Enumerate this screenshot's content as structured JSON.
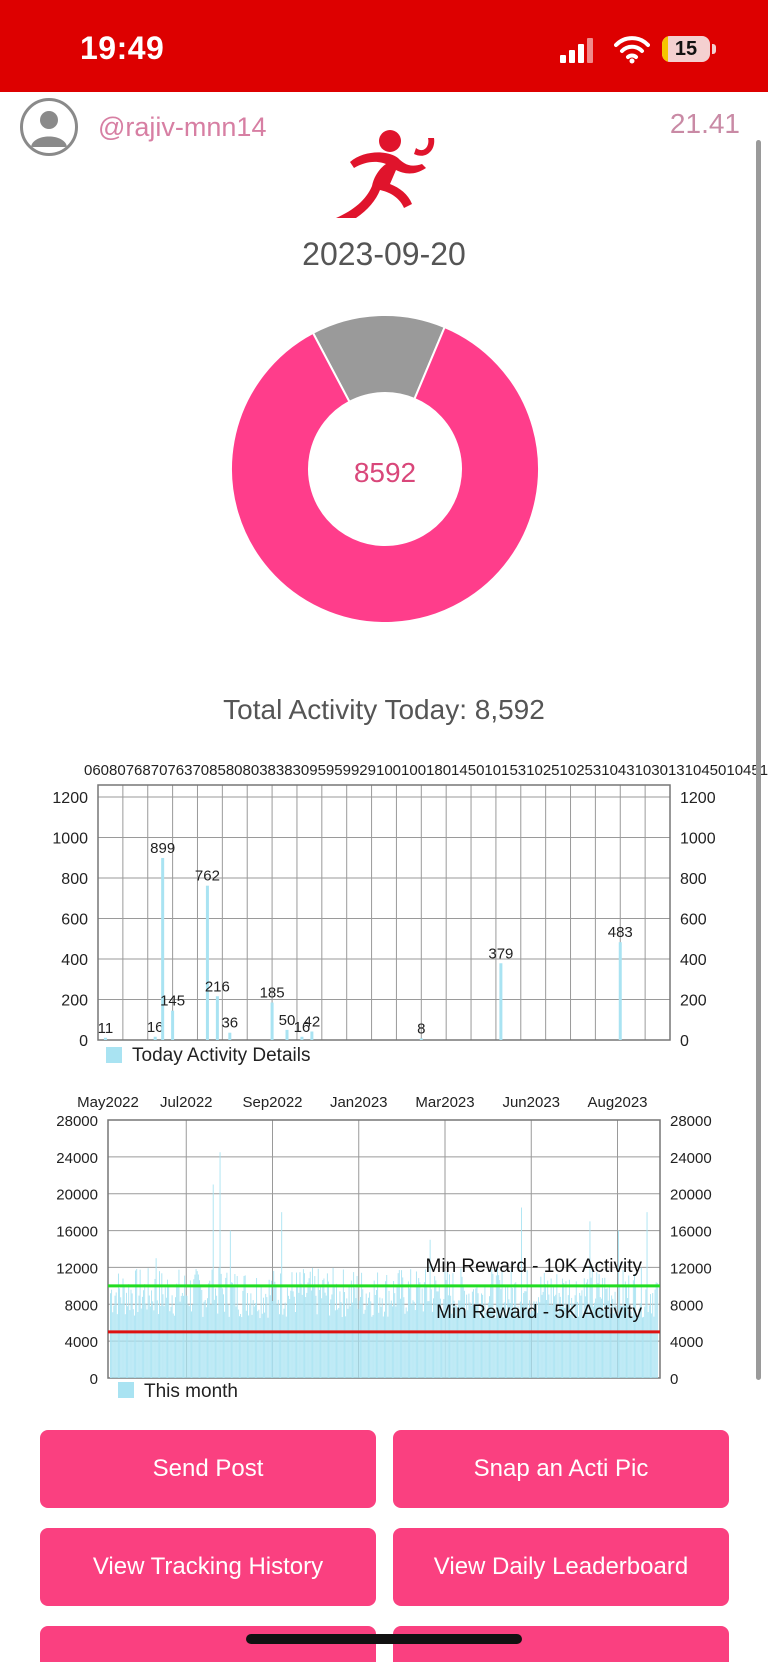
{
  "status_bar": {
    "time": "19:49",
    "battery_level": "15",
    "battery_fraction": 0.15,
    "bg_color": "#dd0000"
  },
  "header": {
    "username": "@rajiv-mnn14",
    "top_value": "21.41",
    "avatar_icon": "user-avatar-icon",
    "logo_icon": "runner-icon"
  },
  "date": "2023-09-20",
  "donut": {
    "center_value": "8592",
    "segments": [
      {
        "value": 8592,
        "color": "#ff3d8b"
      },
      {
        "value": 1408,
        "color": "#9a9a9a"
      }
    ]
  },
  "total_label": "Total Activity Today: 8,592",
  "chart_data": [
    {
      "type": "bar",
      "y_ticks": [
        "0",
        "200",
        "400",
        "600",
        "800",
        "1000",
        "1200"
      ],
      "ylim": [
        0,
        1200
      ],
      "grid": true,
      "legend": "Today Activity Details",
      "legend_placement": "bottom-left",
      "bar_color": "#a9e3f2",
      "x_header_labels": "0608076870763708580803838309595992910010018014501015310251025310431030131045010451530500",
      "bars": [
        {
          "x": 0.3,
          "value": 11,
          "label": "11"
        },
        {
          "x": 2.3,
          "value": 16,
          "label": "16"
        },
        {
          "x": 2.6,
          "value": 899,
          "label": "899"
        },
        {
          "x": 3.0,
          "value": 145,
          "label": "145"
        },
        {
          "x": 4.4,
          "value": 762,
          "label": "762"
        },
        {
          "x": 4.8,
          "value": 216,
          "label": "216"
        },
        {
          "x": 5.3,
          "value": 36,
          "label": "36"
        },
        {
          "x": 7.0,
          "value": 185,
          "label": "185"
        },
        {
          "x": 7.6,
          "value": 50,
          "label": "50"
        },
        {
          "x": 8.2,
          "value": 16,
          "label": "16"
        },
        {
          "x": 8.6,
          "value": 42,
          "label": "42"
        },
        {
          "x": 13.0,
          "value": 8,
          "label": "8"
        },
        {
          "x": 16.2,
          "value": 379,
          "label": "379"
        },
        {
          "x": 21.0,
          "value": 483,
          "label": "483"
        }
      ],
      "x_range": [
        0,
        23
      ]
    },
    {
      "type": "bar",
      "x_labels": [
        "May2022",
        "Jul2022",
        "Sep2022",
        "Jan2023",
        "Mar2023",
        "Jun2023",
        "Aug2023"
      ],
      "y_ticks": [
        "0",
        "4000",
        "8000",
        "12000",
        "16000",
        "20000",
        "24000",
        "28000"
      ],
      "ylim": [
        0,
        28000
      ],
      "grid": true,
      "legend": "This month",
      "legend_placement": "bottom-left",
      "bar_color": "#a9e3f2",
      "reference_lines": [
        {
          "value": 10000,
          "label": "Min Reward - 10K Activity",
          "color": "#22dd22"
        },
        {
          "value": 5000,
          "label": "Min Reward - 5K Activity",
          "color": "#dd1111"
        }
      ],
      "notable_values": [
        13000,
        16000,
        21000,
        24500,
        18000,
        16000,
        15000,
        17000,
        18500,
        18000
      ]
    }
  ],
  "buttons": {
    "send_post": "Send Post",
    "snap_pic": "Snap an Acti Pic",
    "tracking_history": "View Tracking History",
    "daily_leaderboard": "View Daily Leaderboard"
  }
}
